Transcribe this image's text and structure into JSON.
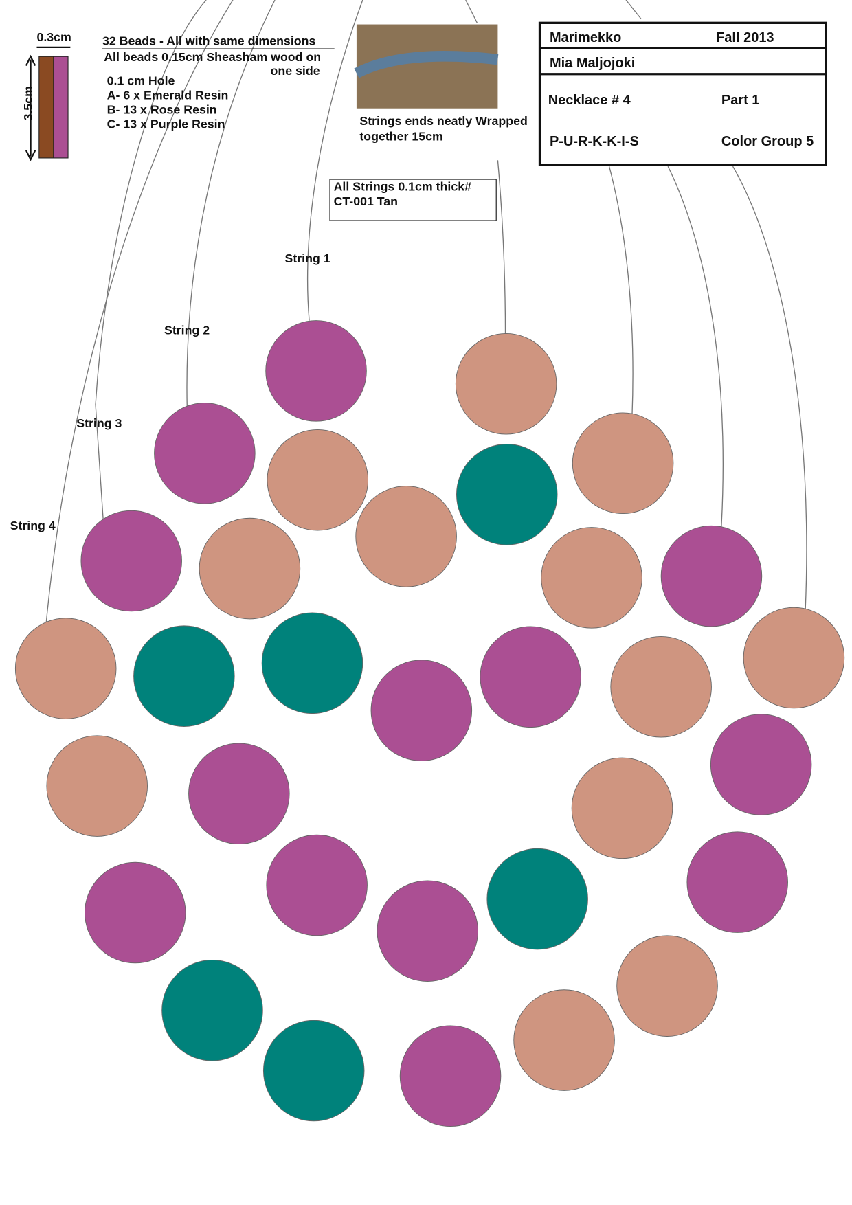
{
  "scale": {
    "width": "0.3cm",
    "height": "3.5cm"
  },
  "specs": {
    "title": "32 Beads - All with same dimensions",
    "wood_line1": "All beads 0.15cm Sheasham wood on",
    "wood_line2": "one side",
    "hole": "0.1 cm Hole",
    "items": [
      "A- 6 x Emerald Resin",
      "B- 13 x Rose Resin",
      "C- 13 x Purple Resin"
    ]
  },
  "photo_caption": [
    "Strings ends neatly Wrapped",
    "together 15cm"
  ],
  "string_note": [
    "All Strings  0.1cm thick#",
    "CT-001 Tan"
  ],
  "header": {
    "brand": "Marimekko",
    "season": "Fall 2013",
    "designer": "Mia Maljojoki",
    "necklace": "Necklace # 4",
    "part": "Part 1",
    "name": "P-U-R-K-K-I-S",
    "color_group": "Color Group 5"
  },
  "strings": [
    "String 1",
    "String 2",
    "String 3",
    "String 4"
  ]
}
